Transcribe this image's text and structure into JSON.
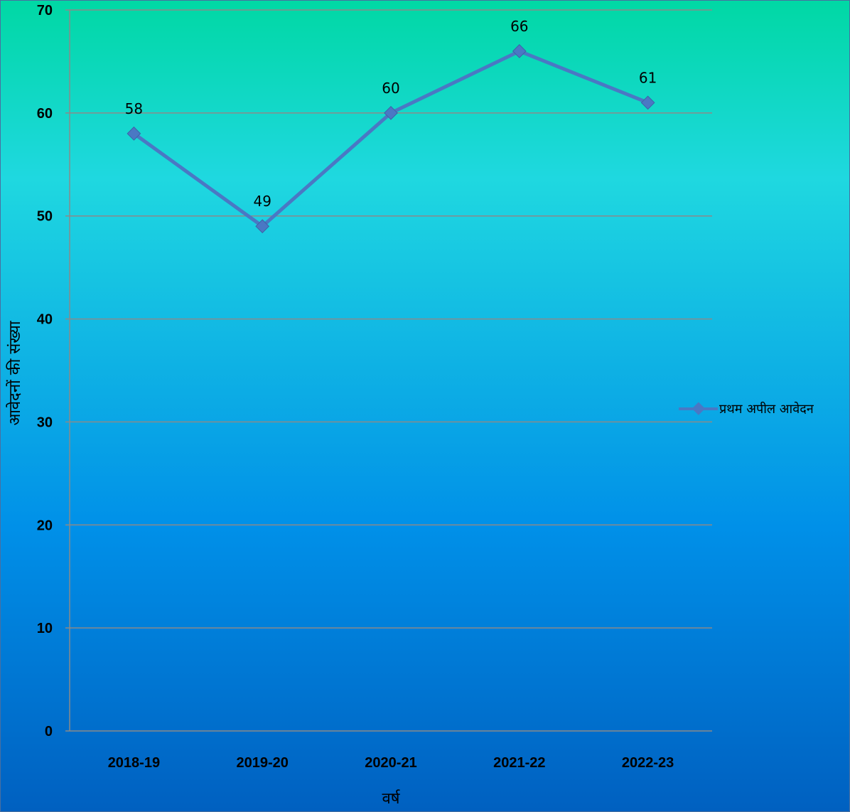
{
  "chart_data": {
    "type": "line",
    "categories": [
      "2018-19",
      "2019-20",
      "2020-21",
      "2021-22",
      "2022-23"
    ],
    "series": [
      {
        "name": "प्रथम अपील आवेदन",
        "values": [
          58,
          49,
          60,
          66,
          61
        ],
        "data_labels": [
          "58",
          "49",
          "60",
          "66",
          "61"
        ],
        "color": "#4a78c4",
        "marker": "diamond"
      }
    ],
    "title": "",
    "xlabel": "वर्ष",
    "ylabel": "आवेदनों की संख्या",
    "ylim": [
      0,
      70
    ],
    "yticks": [
      0,
      10,
      20,
      30,
      40,
      50,
      60,
      70
    ],
    "ytick_labels": [
      "0",
      "10",
      "20",
      "30",
      "40",
      "50",
      "60",
      "70"
    ],
    "grid": true,
    "legend_position": "right",
    "background_gradient": [
      "#00d8a4",
      "#1fd8e0",
      "#0090e8",
      "#0060c0"
    ],
    "gridline_color": "#8a8a8a"
  }
}
